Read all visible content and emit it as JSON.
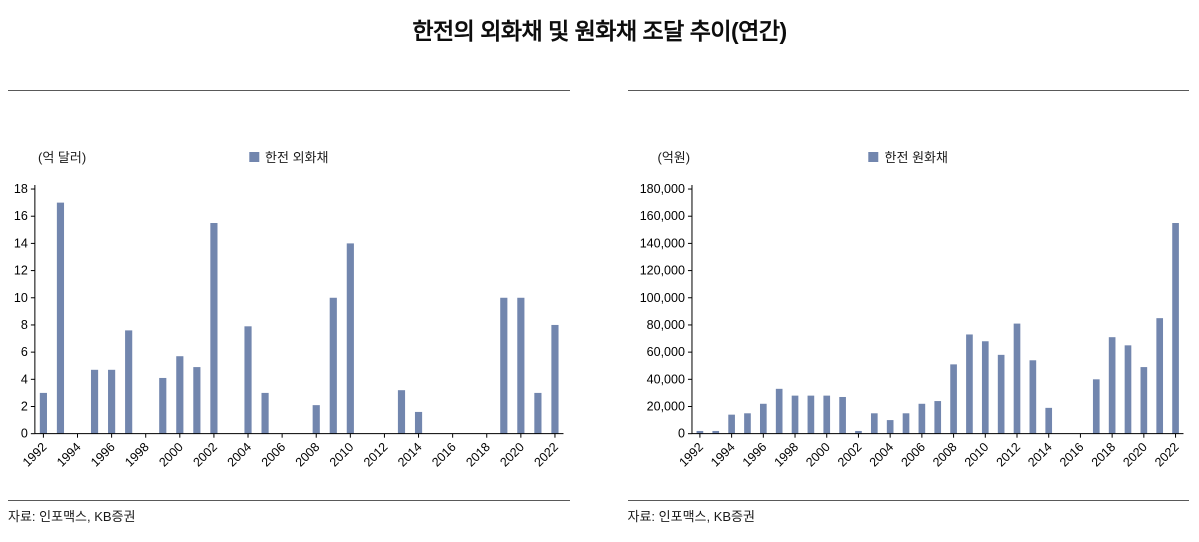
{
  "title": "한전의 외화채 및 원화채 조달 추이(연간)",
  "chart_data": [
    {
      "type": "bar",
      "title": "한전 외화채",
      "legend": "한전 외화채",
      "unit_label": "(억 달러)",
      "source": "자료: 인포맥스, KB증권",
      "xlabel": "",
      "ylabel": "(억 달러)",
      "categories": [
        "1992",
        "1993",
        "1994",
        "1995",
        "1996",
        "1997",
        "1998",
        "1999",
        "2000",
        "2001",
        "2002",
        "2003",
        "2004",
        "2005",
        "2006",
        "2007",
        "2008",
        "2009",
        "2010",
        "2011",
        "2012",
        "2013",
        "2014",
        "2015",
        "2016",
        "2017",
        "2018",
        "2019",
        "2020",
        "2021",
        "2022"
      ],
      "values": [
        3.0,
        17.0,
        0,
        4.7,
        4.7,
        7.6,
        0,
        4.1,
        5.7,
        4.9,
        15.5,
        0,
        7.9,
        3.0,
        0,
        0,
        2.1,
        10.0,
        14.0,
        0,
        0,
        3.2,
        1.6,
        0,
        0,
        0,
        0,
        10.0,
        10.0,
        3.0,
        8.0
      ],
      "ylim": [
        0,
        18
      ],
      "ytick_step": 2,
      "xtick_every": 2,
      "grid": false,
      "legend_position": "top-center",
      "bar_color": "#7286ae"
    },
    {
      "type": "bar",
      "title": "한전 원화채",
      "legend": "한전 원화채",
      "unit_label": "(억원)",
      "source": "자료: 인포맥스, KB증권",
      "xlabel": "",
      "ylabel": "(억원)",
      "categories": [
        "1992",
        "1993",
        "1994",
        "1995",
        "1996",
        "1997",
        "1998",
        "1999",
        "2000",
        "2001",
        "2002",
        "2003",
        "2004",
        "2005",
        "2006",
        "2007",
        "2008",
        "2009",
        "2010",
        "2011",
        "2012",
        "2013",
        "2014",
        "2015",
        "2016",
        "2017",
        "2018",
        "2019",
        "2020",
        "2021",
        "2022"
      ],
      "values": [
        2000,
        2000,
        14000,
        15000,
        22000,
        33000,
        28000,
        28000,
        28000,
        27000,
        2000,
        15000,
        10000,
        15000,
        22000,
        24000,
        51000,
        73000,
        68000,
        58000,
        81000,
        54000,
        19000,
        0,
        0,
        40000,
        71000,
        65000,
        49000,
        85000,
        155000
      ],
      "ylim": [
        0,
        180000
      ],
      "ytick_step": 20000,
      "xtick_every": 2,
      "grid": false,
      "legend_position": "top-center",
      "bar_color": "#7286ae"
    }
  ]
}
